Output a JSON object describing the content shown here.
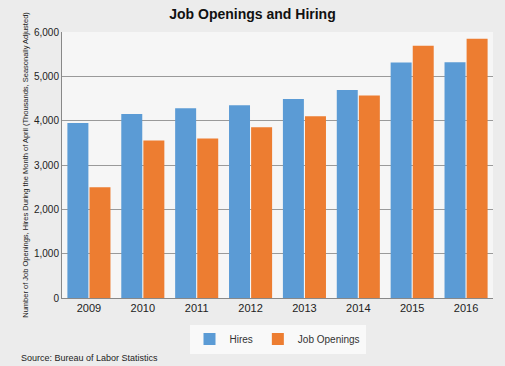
{
  "chart_data": {
    "type": "bar",
    "title": "Job Openings and Hiring",
    "y_label": "Number of Job Openings, Hires During the Month of April (Thousands, Seasonally Adjusted)",
    "source": "Source: Bureau of Labor Statistics",
    "categories": [
      "2009",
      "2010",
      "2011",
      "2012",
      "2013",
      "2014",
      "2015",
      "2016"
    ],
    "series": [
      {
        "name": "Hires",
        "color": "#5b9bd5",
        "values": [
          3950,
          4150,
          4280,
          4350,
          4490,
          4690,
          5310,
          5320
        ]
      },
      {
        "name": "Job Openings",
        "color": "#ed7d31",
        "values": [
          2500,
          3550,
          3600,
          3850,
          4100,
          4570,
          5690,
          5850
        ]
      }
    ],
    "ylim": [
      0,
      6000
    ],
    "yticks": [
      0,
      {
        "value": 1000,
        "label": "1,000"
      },
      {
        "value": 2000,
        "label": "2,000"
      },
      {
        "value": 3000,
        "label": "3,000"
      },
      {
        "value": 4000,
        "label": "4,000"
      },
      {
        "value": 5000,
        "label": "5,000"
      },
      {
        "value": 6000,
        "label": "6,000"
      }
    ],
    "grid": true,
    "legend": "bottom"
  }
}
